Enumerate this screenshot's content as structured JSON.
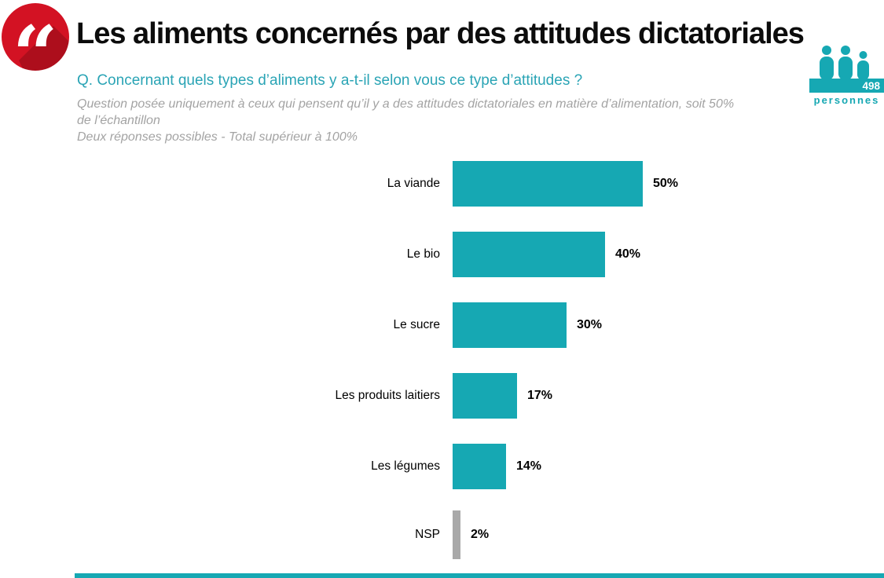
{
  "header": {
    "title": "Les aliments concernés par des attitudes dictatoriales",
    "question": "Q. Concernant quels types d’aliments y a-t-il selon vous ce type d’attitudes ?",
    "note_lines": [
      "Question posée uniquement à ceux qui pensent qu’il y a des attitudes dictatoriales en matière d’alimentation, soit 50%",
      "de l’échantillon",
      "Deux réponses possibles - Total supérieur à 100%"
    ],
    "sample": {
      "count": "498",
      "unit": "personnes"
    }
  },
  "colors": {
    "teal": "#16a8b3",
    "teal_text": "#2aa4b5",
    "red": "#d31223",
    "gray_bar": "#a9a9a9",
    "gray_text": "#a3a3a3"
  },
  "chart_data": {
    "type": "bar",
    "orientation": "horizontal",
    "title": "Les aliments concernés par des attitudes dictatoriales",
    "categories": [
      "La viande",
      "Le bio",
      "Le sucre",
      "Les produits laitiers",
      "Les légumes",
      "NSP"
    ],
    "values": [
      50,
      40,
      30,
      17,
      14,
      2
    ],
    "value_labels": [
      "50%",
      "40%",
      "30%",
      "17%",
      "14%",
      "2%"
    ],
    "bar_colors": [
      "#16a8b3",
      "#16a8b3",
      "#16a8b3",
      "#16a8b3",
      "#16a8b3",
      "#a9a9a9"
    ],
    "unit": "%",
    "xlim": [
      0,
      100
    ],
    "axis_visible": false,
    "grid": false,
    "legend": false
  }
}
